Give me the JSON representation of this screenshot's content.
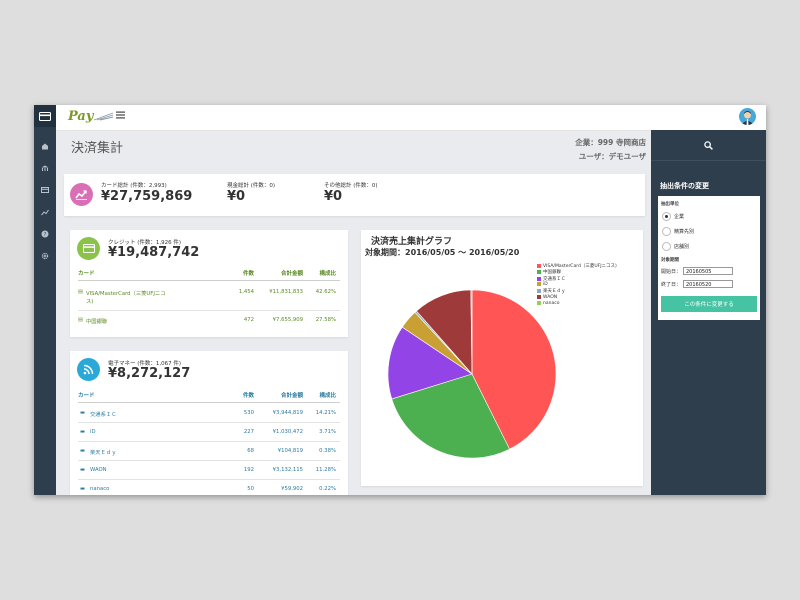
{
  "topbar": {
    "logo": "Pay",
    "menu_icon": "hamburger-icon",
    "avatar_icon": "avatar-icon"
  },
  "sidebar": {
    "icons": [
      "card-icon",
      "dashboard-icon",
      "bank-icon",
      "credit-card-icon",
      "chart-icon",
      "help-icon",
      "settings-icon"
    ]
  },
  "page": {
    "title": "決済集計",
    "company": "企業：999 寺岡商店",
    "user": "ユーザ：デモユーザ"
  },
  "summary": {
    "card_label": "カード総計 (件数：2,993)",
    "card_value": "¥27,759,869",
    "cash_label": "現金総計 (件数：0)",
    "cash_value": "¥0",
    "other_label": "その他総計 (件数：0)",
    "other_value": "¥0"
  },
  "credit": {
    "label": "クレジット (件数：1,926 件)",
    "value": "¥19,487,742",
    "headers": [
      "カード",
      "件数",
      "合計金額",
      "構成比"
    ],
    "rows": [
      {
        "name": "VISA/MasterCard（三菱UFJニコ",
        "name2": "ス)",
        "count": "1,454",
        "amount": "¥11,831,833",
        "ratio": "42.62%"
      },
      {
        "name": "中国銀聯",
        "count": "472",
        "amount": "¥7,655,909",
        "ratio": "27.58%"
      }
    ]
  },
  "emoney": {
    "label": "電子マネー (件数：1,067 件)",
    "value": "¥8,272,127",
    "headers": [
      "カード",
      "件数",
      "合計金額",
      "構成比"
    ],
    "rows": [
      {
        "name": "交通系ＩＣ",
        "count": "530",
        "amount": "¥3,944,819",
        "ratio": "14.21%"
      },
      {
        "name": "iD",
        "count": "227",
        "amount": "¥1,030,472",
        "ratio": "3.71%"
      },
      {
        "name": "楽天Ｅｄｙ",
        "count": "68",
        "amount": "¥104,819",
        "ratio": "0.38%"
      },
      {
        "name": "WAON",
        "count": "192",
        "amount": "¥3,132,115",
        "ratio": "11.28%"
      },
      {
        "name": "nanaco",
        "count": "50",
        "amount": "¥59,902",
        "ratio": "0.22%"
      }
    ]
  },
  "chart_data": {
    "type": "pie",
    "title": "決済売上集計グラフ",
    "subtitle": "対象期間：2016/05/05 ～ 2016/05/20",
    "legend_position": "top-right",
    "labels": [
      "VISA/MasterCard（三菱UFJニコス)",
      "中国銀聯",
      "交通系ＩＣ",
      "iD",
      "楽天Ｅｄｙ",
      "WAON",
      "nanaco"
    ],
    "values": [
      42.62,
      27.58,
      14.21,
      3.71,
      0.38,
      11.28,
      0.22
    ],
    "colors": [
      "#ff5555",
      "#4caf50",
      "#9344e6",
      "#c9a033",
      "#8fa8c0",
      "#9e3a3a",
      "#9acd52"
    ]
  },
  "filter": {
    "search_icon": "search-icon",
    "title": "抽出条件の変更",
    "unit_label": "抽出単位",
    "options": [
      "企業",
      "精算先別",
      "店舗別"
    ],
    "period_label": "対象期間",
    "start_label": "開始日：",
    "start_value": "20160505",
    "end_label": "終了日：",
    "end_value": "20160520",
    "submit": "この条件に変更する"
  }
}
